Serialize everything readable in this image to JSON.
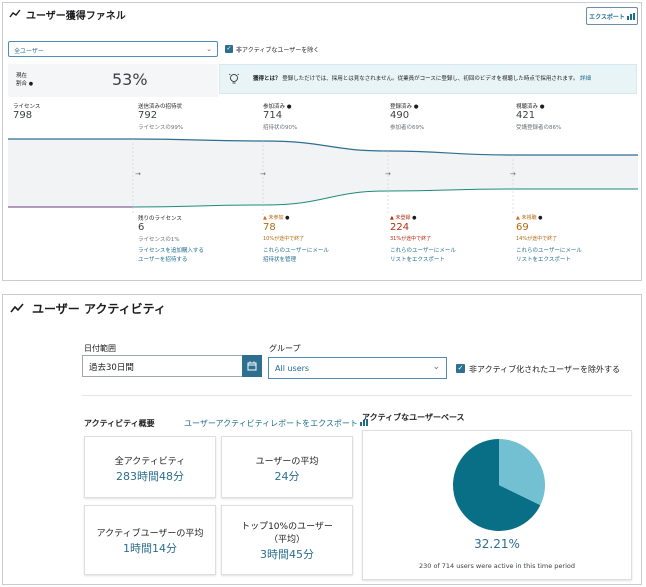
{
  "funnel": {
    "title": "ユーザー獲得ファネル",
    "export_label": "エクスポート",
    "user_filter": "全ユーザー",
    "exclude_label": "非アクティブなユーザーを除く",
    "rate_label": [
      "現在",
      "割合"
    ],
    "rate_value": "53%",
    "info_bold": "獲得とは？",
    "info_text": "登録しただけでは、採用とは見なされません。従業員がコースに登録し、初回のビデオを視聴した時点で採用されます。",
    "info_link": "詳細",
    "stages": [
      {
        "label": "ライセンス",
        "value": "798",
        "sub": ""
      },
      {
        "label": "送信済みの招待状",
        "value": "792",
        "sub": "ライセンスの99%"
      },
      {
        "label": "参加済み",
        "value": "714",
        "sub": "招待状の90%"
      },
      {
        "label": "登録済み",
        "value": "490",
        "sub": "参加者の69%"
      },
      {
        "label": "視聴済み",
        "value": "421",
        "sub": "受講登録者の86%"
      }
    ],
    "dropoffs": [
      {
        "label": "残りのライセンス",
        "value": "6",
        "sub": "ライセンスの1%",
        "links": [
          "ライセンスを追加購入する",
          "ユーザーを招待する"
        ]
      },
      {
        "label": "未参加",
        "value": "78",
        "sub": "10%が途中で終了",
        "links": [
          "これらのユーザーにメール",
          "招待状を管理"
        ]
      },
      {
        "label": "未登録",
        "value": "224",
        "sub": "31%が途中で終了",
        "links": [
          "これらのユーザーにメール",
          "リストをエクスポート"
        ]
      },
      {
        "label": "未視聴",
        "value": "69",
        "sub": "14%が途中で終了",
        "links": [
          "これらのユーザーにメール",
          "リストをエクスポート"
        ]
      }
    ]
  },
  "activity": {
    "title": "ユーザー アクティビティ",
    "date_range_label": "日付範囲",
    "date_range_value": "過去30日間",
    "group_label": "グループ",
    "group_value": "All users",
    "exclude_label": "非アクティブ化されたユーザーを除外する",
    "overview_title": "アクティビティ概要",
    "export_report": "ユーザーアクティビティレポートをエクスポート",
    "stats": [
      {
        "label": "全アクティビティ",
        "value": "283時間48分"
      },
      {
        "label": "ユーザーの平均",
        "value": "24分"
      },
      {
        "label": "アクティブユーザーの平均",
        "value": "1時間14分"
      },
      {
        "label": "トップ10%のユーザー（平均）",
        "value": "3時間45分"
      }
    ],
    "base_title": "アクティブなユーザーベース",
    "active_percent": "32.21%",
    "active_fraction": 0.3221,
    "footer": "230 of 714 users were active in this time period",
    "colors": {
      "active": "#72c0d1",
      "inactive": "#086f86"
    }
  }
}
